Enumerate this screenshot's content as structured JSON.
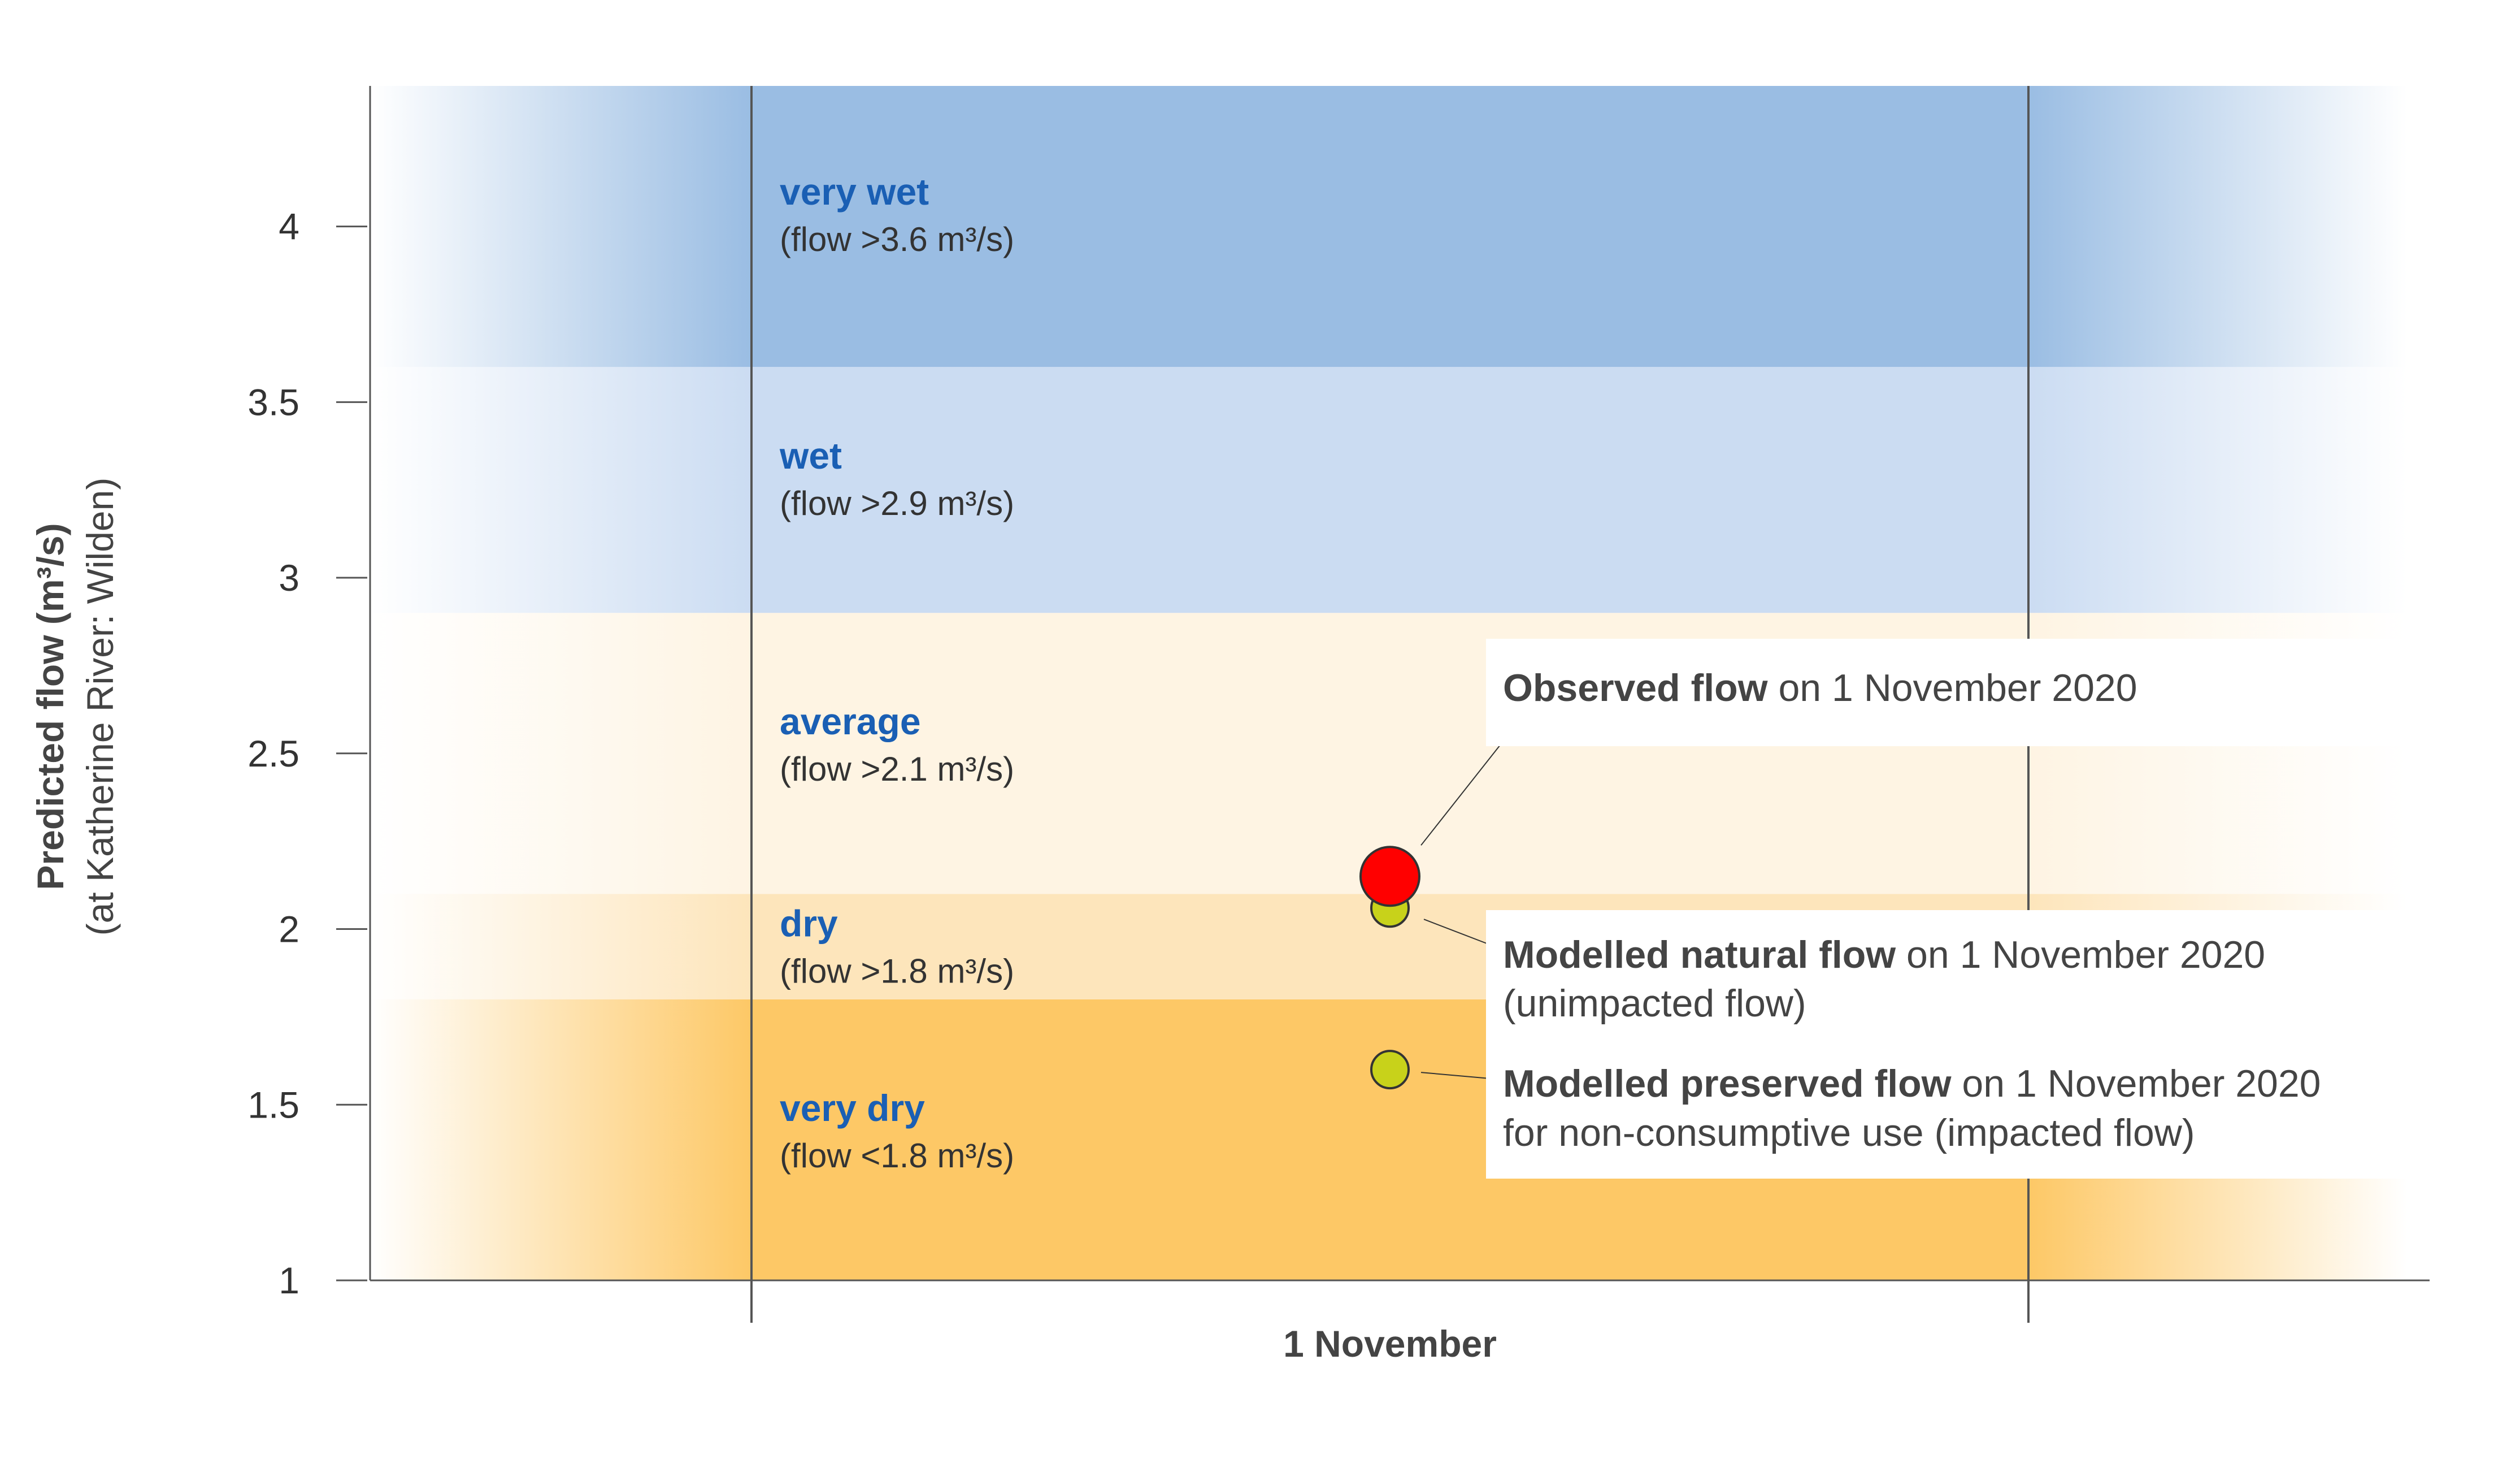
{
  "chart_data": {
    "type": "scatter",
    "title": "",
    "xlabel": "1 November",
    "ylabel": "Predicted flow (m³/s)",
    "ylabel_sub": "(at Katherine River: Wilden)",
    "ylim": [
      1,
      4.4
    ],
    "y_ticks": [
      {
        "value": 1,
        "label": "1"
      },
      {
        "value": 1.5,
        "label": "1.5"
      },
      {
        "value": 2,
        "label": "2"
      },
      {
        "value": 2.5,
        "label": "2.5"
      },
      {
        "value": 3,
        "label": "3"
      },
      {
        "value": 3.5,
        "label": "3.5"
      },
      {
        "value": 4,
        "label": "4"
      }
    ],
    "bands": [
      {
        "name": "very dry",
        "note": "(flow <1.8 m³/s)",
        "y0": 1,
        "y1": 1.8,
        "color": "#fdc866"
      },
      {
        "name": "dry",
        "note": "(flow >1.8 m³/s)",
        "y0": 1.8,
        "y1": 2.1,
        "color": "#fde5bb"
      },
      {
        "name": "average",
        "note": "(flow >2.1 m³/s)",
        "y0": 2.1,
        "y1": 2.9,
        "color": "#fef4e3"
      },
      {
        "name": "wet",
        "note": "(flow >2.9 m³/s)",
        "y0": 2.9,
        "y1": 3.6,
        "color": "#cbdcf2"
      },
      {
        "name": "very wet",
        "note": "(flow >3.6 m³/s)",
        "y0": 3.6,
        "y1": 4.4,
        "color": "#9abde3"
      }
    ],
    "points": [
      {
        "name": "Observed flow",
        "value": 2.15,
        "color": "#ff0000",
        "large": true,
        "annotation": {
          "bold": "Observed flow",
          "rest": " on 1 November 2020",
          "line2": ""
        }
      },
      {
        "name": "Modelled natural flow",
        "value": 2.06,
        "color": "#c8d21a",
        "large": false,
        "annotation": {
          "bold": "Modelled natural flow",
          "rest": " on 1 November 2020",
          "line2": "(unimpacted flow)"
        }
      },
      {
        "name": "Modelled preserved flow",
        "value": 1.6,
        "color": "#c8d21a",
        "large": false,
        "annotation": {
          "bold": "Modelled preserved flow",
          "rest": " on 1 November 2020",
          "line2": "for non-consumptive use (impacted flow)"
        }
      }
    ]
  }
}
